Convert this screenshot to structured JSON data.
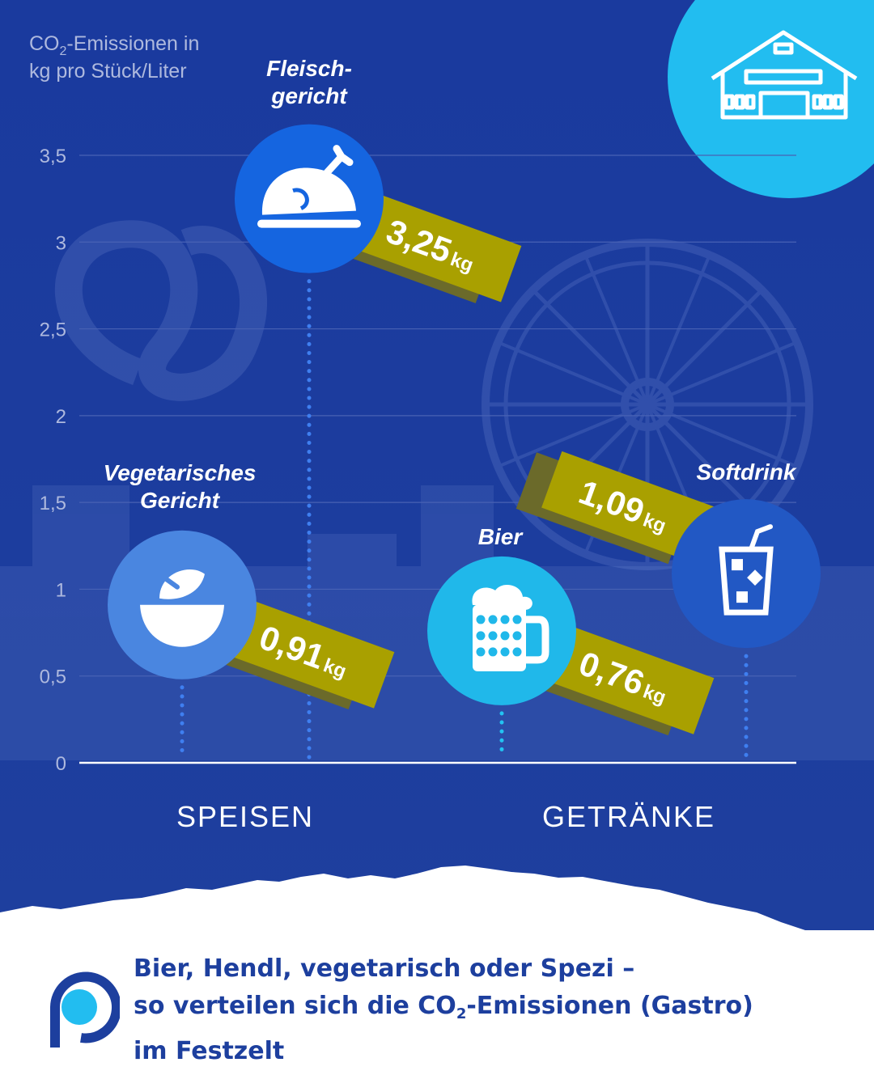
{
  "chart_data": {
    "type": "bar",
    "ylabel_line1_pre": "CO",
    "ylabel_sub": "2",
    "ylabel_line1_post": "-Emissionen in",
    "ylabel_line2": "kg pro Stück/Liter",
    "ylim": [
      0,
      3.5
    ],
    "y_ticks": [
      "0",
      "0,5",
      "1",
      "1,5",
      "2",
      "2,5",
      "3",
      "3,5"
    ],
    "y_tick_values": [
      0,
      0.5,
      1,
      1.5,
      2,
      2.5,
      3,
      3.5
    ],
    "grid": true,
    "groups": [
      "SPEISEN",
      "GETRÄNKE"
    ],
    "items": [
      {
        "label_lines": [
          "Vegetarisches",
          "Gericht"
        ],
        "group": "SPEISEN",
        "value": 0.91,
        "value_label": "0,91",
        "unit": "kg",
        "icon": "salad-bowl-icon"
      },
      {
        "label_lines": [
          "Fleisch-",
          "gericht"
        ],
        "group": "SPEISEN",
        "value": 3.25,
        "value_label": "3,25",
        "unit": "kg",
        "icon": "roast-chicken-icon"
      },
      {
        "label_lines": [
          "Bier"
        ],
        "group": "GETRÄNKE",
        "value": 0.76,
        "value_label": "0,76",
        "unit": "kg",
        "icon": "beer-mug-icon"
      },
      {
        "label_lines": [
          "Softdrink"
        ],
        "group": "GETRÄNKE",
        "value": 1.09,
        "value_label": "1,09",
        "unit": "kg",
        "icon": "soft-drink-icon"
      }
    ]
  },
  "footer": {
    "line1": "Bier, Hendl, vegetarisch oder Spezi –",
    "line2_pre": "so verteilen sich die CO",
    "line2_sub": "2",
    "line2_post": "-Emissionen (Gastro)",
    "line3": "im Festzelt"
  },
  "icons": {
    "corner": "beer-tent-icon",
    "logo": "brand-logo-icon"
  },
  "colors": {
    "background": "#1c3b9c",
    "grid": "#4862b4",
    "axis": "#ffffff",
    "text_muted": "#aeb9de",
    "label_tag": "#a9a000",
    "label_tag_shadow": "#6b6a2a",
    "circle_meat": "#1565e0",
    "circle_veg": "#4a86e0",
    "circle_beer": "#20b8ea",
    "circle_soft": "#2258c4",
    "corner_circle": "#22bdf0",
    "footer_text": "#1d3f9e"
  }
}
